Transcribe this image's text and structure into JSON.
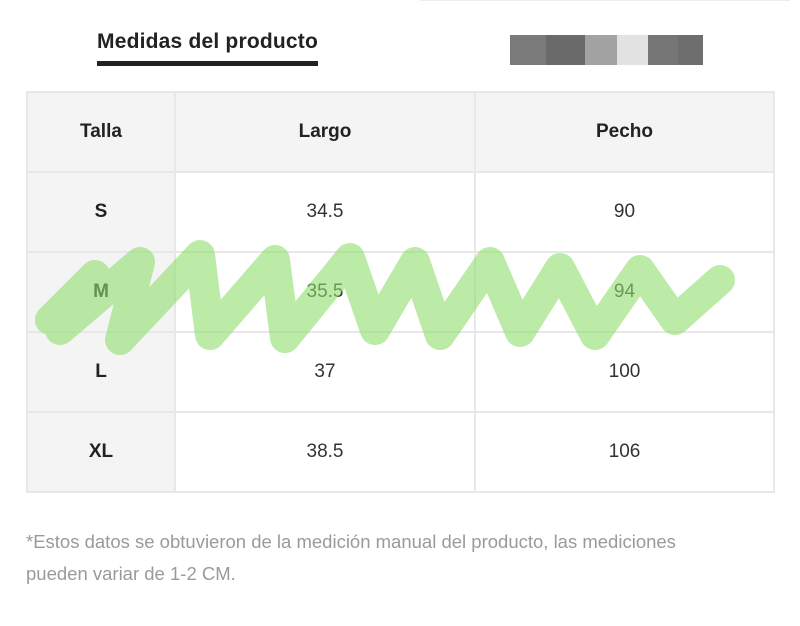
{
  "section": {
    "tab_title": "Medidas del producto"
  },
  "swatch_colors": [
    "#7a7a7a",
    "#6a6a6a",
    "#a3a3a3",
    "#e2e2e2",
    "#767676",
    "#6e6e6e"
  ],
  "table": {
    "headers": [
      "Talla",
      "Largo",
      "Pecho"
    ],
    "rows": [
      {
        "size": "S",
        "largo": "34.5",
        "pecho": "90"
      },
      {
        "size": "M",
        "largo": "35.5",
        "pecho": "94"
      },
      {
        "size": "L",
        "largo": "37",
        "pecho": "100"
      },
      {
        "size": "XL",
        "largo": "38.5",
        "pecho": "106"
      }
    ]
  },
  "footnote": "*Estos datos se obtuvieron de la medición manual del producto, las mediciones pueden variar de 1-2 CM.",
  "colors": {
    "header_bg": "#f4f4f4",
    "border": "#e8e8e8",
    "highlight": "#8fdc6c",
    "footnote_text": "#9a9a9a"
  }
}
